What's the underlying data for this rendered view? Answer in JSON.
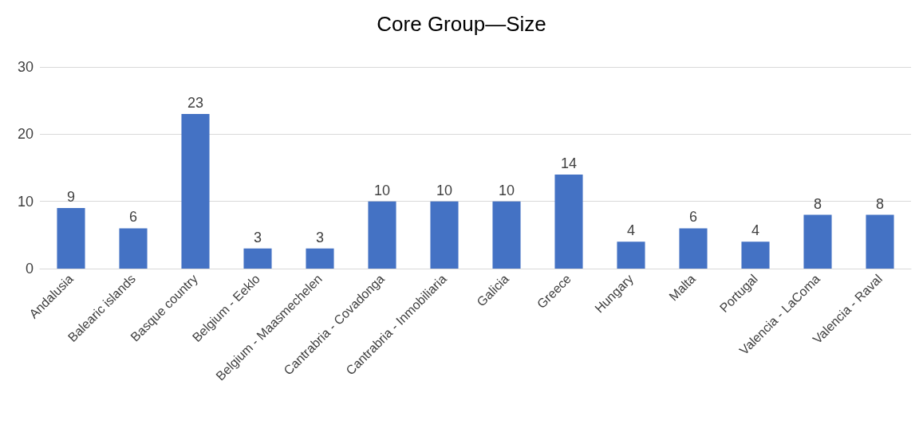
{
  "chart_data": {
    "type": "bar",
    "title": "Core Group—Size",
    "categories": [
      "Andalusia",
      "Balearic islands",
      "Basque country",
      "Belgium - Eeklo",
      "Belgium - Maasmechelen",
      "Cantrabria - Covadonga",
      "Cantrabria - Inmobiliaria",
      "Galicia",
      "Greece",
      "Hungary",
      "Malta",
      "Portugal",
      "Valencia - LaComa",
      "Valencia - Raval"
    ],
    "values": [
      9,
      6,
      23,
      3,
      3,
      10,
      10,
      10,
      14,
      4,
      6,
      4,
      8,
      8
    ],
    "color": "#4472c4",
    "ylim": [
      0,
      30
    ],
    "yticks": [
      0,
      10,
      20,
      30
    ],
    "grid": "y",
    "data_labels": true
  }
}
